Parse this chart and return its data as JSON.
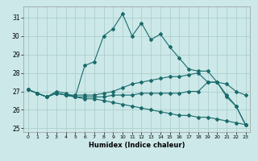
{
  "xlabel": "Humidex (Indice chaleur)",
  "xlim": [
    -0.5,
    23.5
  ],
  "ylim": [
    24.8,
    31.6
  ],
  "yticks": [
    25,
    26,
    27,
    28,
    29,
    30,
    31
  ],
  "xticks": [
    0,
    1,
    2,
    3,
    4,
    5,
    6,
    7,
    8,
    9,
    10,
    11,
    12,
    13,
    14,
    15,
    16,
    17,
    18,
    19,
    20,
    21,
    22,
    23
  ],
  "background_color": "#cce8e8",
  "grid_color": "#aed0d0",
  "line_color": "#1a6b6b",
  "line1_y": [
    27.1,
    26.9,
    26.7,
    27.0,
    26.9,
    26.7,
    28.4,
    28.6,
    30.0,
    30.4,
    31.2,
    30.0,
    30.7,
    29.8,
    30.1,
    29.4,
    28.8,
    28.2,
    28.1,
    28.1,
    27.5,
    26.7,
    26.2,
    25.2
  ],
  "line2_y": [
    27.1,
    26.9,
    26.7,
    26.9,
    26.8,
    26.8,
    26.8,
    26.8,
    26.9,
    27.0,
    27.2,
    27.4,
    27.5,
    27.6,
    27.7,
    27.8,
    27.8,
    27.9,
    28.0,
    27.5,
    27.5,
    27.4,
    27.0,
    26.8
  ],
  "line3_y": [
    27.1,
    26.9,
    26.7,
    26.9,
    26.8,
    26.7,
    26.7,
    26.7,
    26.7,
    26.8,
    26.8,
    26.8,
    26.9,
    26.9,
    26.9,
    26.9,
    26.9,
    27.0,
    27.0,
    27.5,
    27.5,
    26.8,
    26.2,
    25.2
  ],
  "line4_y": [
    27.1,
    26.9,
    26.7,
    26.9,
    26.8,
    26.7,
    26.6,
    26.6,
    26.5,
    26.4,
    26.3,
    26.2,
    26.1,
    26.0,
    25.9,
    25.8,
    25.7,
    25.7,
    25.6,
    25.6,
    25.5,
    25.4,
    25.3,
    25.2
  ]
}
